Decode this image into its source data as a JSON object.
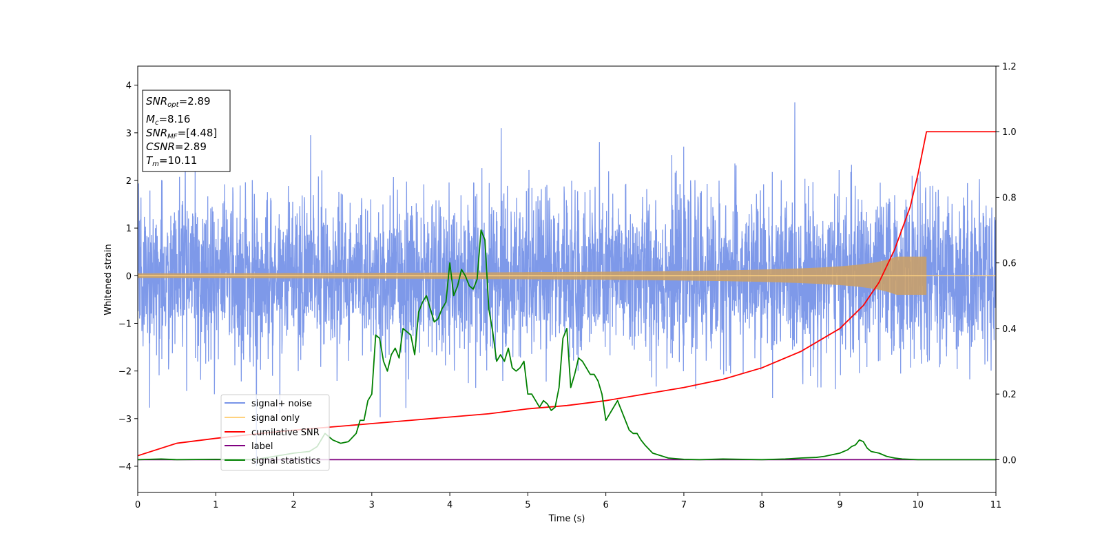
{
  "chart_data": {
    "type": "line",
    "xlabel": "Time (s)",
    "ylabel": "Whitened strain",
    "xlim": [
      0,
      11
    ],
    "ylim": [
      -4.55,
      4.4
    ],
    "ylim_right": [
      -0.1,
      1.2
    ],
    "x_ticks": [
      "0",
      "1",
      "2",
      "3",
      "4",
      "5",
      "6",
      "7",
      "8",
      "9",
      "10",
      "11"
    ],
    "y_ticks": [
      "−4",
      "−3",
      "−2",
      "−1",
      "0",
      "1",
      "2",
      "3",
      "4"
    ],
    "y_ticks_right": [
      "0.0",
      "0.2",
      "0.4",
      "0.6",
      "0.8",
      "1.0",
      "1.2"
    ],
    "legend_position": "lower-left",
    "legend": [
      {
        "label": "signal+ noise",
        "color": "#7793e8"
      },
      {
        "label": "signal only",
        "color": "#ffd27f"
      },
      {
        "label": "cumilative SNR",
        "color": "#ff0000"
      },
      {
        "label": "label",
        "color": "#800080"
      },
      {
        "label": "signal statistics",
        "color": "#008000"
      }
    ],
    "info_box": {
      "snr_opt": {
        "base": "SNR",
        "sub": "opt",
        "value": "=2.89"
      },
      "mc": {
        "base": "M",
        "sub": "c",
        "value": "=8.16"
      },
      "snr_mf": {
        "base": "SNR",
        "sub": "MF",
        "value": "=[4.48]"
      },
      "csnr": {
        "base": "CSNR",
        "value": "=2.89"
      },
      "tm": {
        "base": "T",
        "sub": "m",
        "value": "=10.11"
      }
    },
    "series": [
      {
        "name": "signal+ noise",
        "axis": "left",
        "description_range": [
          -4.15,
          4.0
        ],
        "sigma": 0.85,
        "noise_seed": 7
      },
      {
        "name": "signal only",
        "axis": "left",
        "merger_time": 10.11,
        "peak_amplitude": 0.4
      },
      {
        "name": "cumilative SNR",
        "axis": "right",
        "x": [
          0,
          0.5,
          1,
          1.5,
          2,
          2.5,
          3,
          3.5,
          4,
          4.5,
          5,
          5.5,
          6,
          6.5,
          7,
          7.5,
          8,
          8.5,
          9,
          9.3,
          9.5,
          9.7,
          9.9,
          10.0,
          10.11,
          10.11,
          11
        ],
        "y": [
          0.012,
          0.05,
          0.065,
          0.078,
          0.09,
          0.1,
          0.11,
          0.12,
          0.13,
          0.14,
          0.155,
          0.165,
          0.18,
          0.2,
          0.22,
          0.245,
          0.28,
          0.33,
          0.4,
          0.47,
          0.54,
          0.64,
          0.77,
          0.87,
          1.0,
          1.0,
          1.0
        ]
      },
      {
        "name": "label",
        "axis": "right",
        "x": [
          0,
          11
        ],
        "y": [
          0,
          0
        ]
      },
      {
        "name": "signal statistics",
        "axis": "right",
        "x": [
          0,
          0.3,
          0.5,
          1.0,
          1.5,
          2.0,
          2.2,
          2.3,
          2.4,
          2.5,
          2.6,
          2.7,
          2.8,
          2.85,
          2.9,
          2.95,
          3.0,
          3.05,
          3.1,
          3.15,
          3.2,
          3.25,
          3.3,
          3.35,
          3.4,
          3.45,
          3.5,
          3.55,
          3.6,
          3.65,
          3.7,
          3.75,
          3.8,
          3.85,
          3.9,
          3.95,
          4.0,
          4.05,
          4.1,
          4.15,
          4.2,
          4.25,
          4.3,
          4.35,
          4.4,
          4.45,
          4.5,
          4.55,
          4.6,
          4.65,
          4.7,
          4.75,
          4.8,
          4.85,
          4.9,
          4.95,
          5.0,
          5.05,
          5.1,
          5.15,
          5.2,
          5.25,
          5.3,
          5.35,
          5.4,
          5.45,
          5.5,
          5.55,
          5.6,
          5.65,
          5.7,
          5.75,
          5.8,
          5.85,
          5.9,
          5.95,
          6.0,
          6.05,
          6.1,
          6.15,
          6.2,
          6.25,
          6.3,
          6.35,
          6.4,
          6.45,
          6.5,
          6.6,
          6.8,
          7.0,
          7.2,
          7.5,
          8.0,
          8.3,
          8.5,
          8.7,
          8.8,
          8.9,
          9.0,
          9.05,
          9.1,
          9.15,
          9.2,
          9.25,
          9.3,
          9.35,
          9.4,
          9.5,
          9.6,
          9.7,
          9.8,
          10.0,
          11
        ],
        "y": [
          0.0,
          0.002,
          0.0,
          0.001,
          0.0,
          0.02,
          0.025,
          0.04,
          0.08,
          0.06,
          0.05,
          0.055,
          0.08,
          0.12,
          0.12,
          0.18,
          0.2,
          0.38,
          0.37,
          0.3,
          0.27,
          0.32,
          0.34,
          0.31,
          0.4,
          0.39,
          0.38,
          0.32,
          0.45,
          0.48,
          0.5,
          0.46,
          0.42,
          0.43,
          0.46,
          0.48,
          0.6,
          0.5,
          0.53,
          0.58,
          0.56,
          0.53,
          0.52,
          0.55,
          0.7,
          0.67,
          0.46,
          0.39,
          0.3,
          0.32,
          0.3,
          0.34,
          0.28,
          0.27,
          0.28,
          0.3,
          0.2,
          0.2,
          0.18,
          0.16,
          0.18,
          0.17,
          0.15,
          0.16,
          0.22,
          0.37,
          0.4,
          0.22,
          0.26,
          0.31,
          0.3,
          0.28,
          0.26,
          0.26,
          0.24,
          0.2,
          0.12,
          0.14,
          0.16,
          0.18,
          0.15,
          0.12,
          0.09,
          0.08,
          0.08,
          0.06,
          0.045,
          0.02,
          0.005,
          0.001,
          0.0,
          0.002,
          0.0,
          0.002,
          0.005,
          0.007,
          0.01,
          0.015,
          0.02,
          0.025,
          0.03,
          0.04,
          0.045,
          0.06,
          0.055,
          0.035,
          0.025,
          0.02,
          0.01,
          0.005,
          0.002,
          0.0,
          0.0
        ]
      }
    ]
  }
}
